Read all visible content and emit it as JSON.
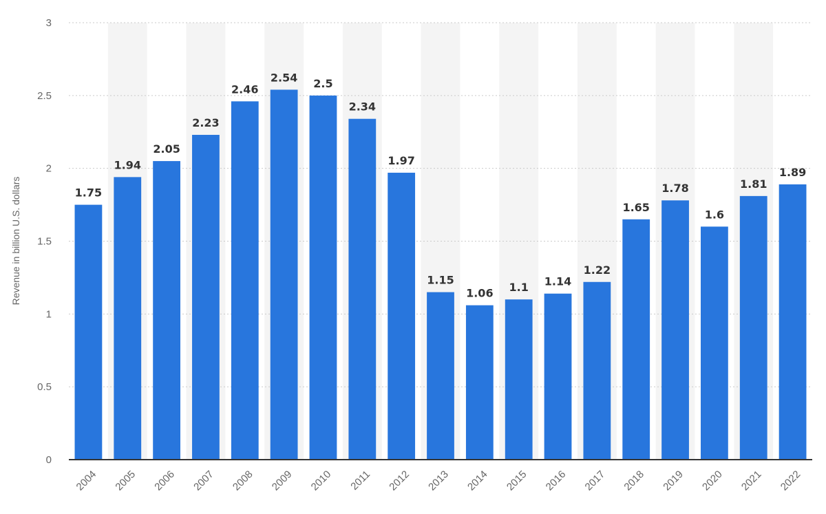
{
  "chart_data": {
    "type": "bar",
    "categories": [
      "2004",
      "2005",
      "2006",
      "2007",
      "2008",
      "2009",
      "2010",
      "2011",
      "2012",
      "2013",
      "2014",
      "2015",
      "2016",
      "2017",
      "2018",
      "2019",
      "2020",
      "2021",
      "2022"
    ],
    "values": [
      1.75,
      1.94,
      2.05,
      2.23,
      2.46,
      2.54,
      2.5,
      2.34,
      1.97,
      1.15,
      1.06,
      1.1,
      1.14,
      1.22,
      1.65,
      1.78,
      1.6,
      1.81,
      1.89
    ],
    "value_labels": [
      "1.75",
      "1.94",
      "2.05",
      "2.23",
      "2.46",
      "2.54",
      "2.5",
      "2.34",
      "1.97",
      "1.15",
      "1.06",
      "1.1",
      "1.14",
      "1.22",
      "1.65",
      "1.78",
      "1.6",
      "1.81",
      "1.89"
    ],
    "ylabel": "Revenue in billion U.S. dollars",
    "ylim": [
      0,
      3
    ],
    "yticks": [
      0,
      0.5,
      1,
      1.5,
      2,
      2.5,
      3
    ],
    "ytick_labels": [
      "0",
      "0.5",
      "1",
      "1.5",
      "2",
      "2.5",
      "3"
    ],
    "grid": true,
    "bar_color": "#2876dd"
  }
}
